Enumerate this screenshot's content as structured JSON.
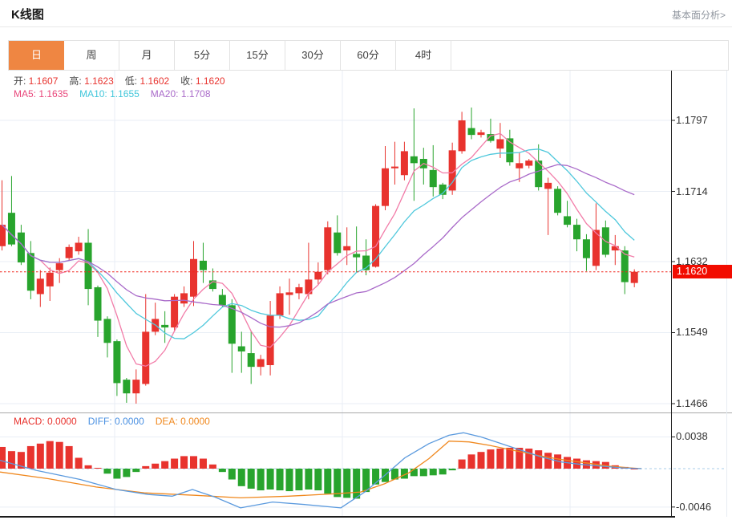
{
  "header": {
    "title": "K线图",
    "link": "基本面分析>"
  },
  "tabs": {
    "items": [
      "日",
      "周",
      "月",
      "5分",
      "15分",
      "30分",
      "60分",
      "4时"
    ],
    "active_index": 0,
    "active_color": "#ef8642"
  },
  "info": {
    "ohlc": [
      {
        "label": "开:",
        "value": "1.1607"
      },
      {
        "label": "高:",
        "value": "1.1623"
      },
      {
        "label": "低:",
        "value": "1.1602"
      },
      {
        "label": "收:",
        "value": "1.1620"
      }
    ],
    "value_color": "#e8332e",
    "ma": [
      {
        "label": "MA5:",
        "value": "1.1635",
        "color": "#e9477b"
      },
      {
        "label": "MA10:",
        "value": "1.1655",
        "color": "#3fc6da"
      },
      {
        "label": "MA20:",
        "value": "1.1708",
        "color": "#a96ac9"
      }
    ]
  },
  "macd_info": [
    {
      "label": "MACD:",
      "value": "0.0000",
      "color": "#e8332e"
    },
    {
      "label": "DIFF:",
      "value": "0.0000",
      "color": "#4a90e2"
    },
    {
      "label": "DEA:",
      "value": "0.0000",
      "color": "#f0881e"
    }
  ],
  "chart_data": {
    "type": "candlestick+macd",
    "grid": true,
    "main": {
      "y_ticks": [
        1.1797,
        1.1714,
        1.1632,
        1.1549,
        1.1466
      ],
      "current_price": 1.162,
      "current_tag_bg": "#f20c00",
      "dotted_line_color": "#f0251b",
      "up_color": "#e8332e",
      "down_color": "#28a42d",
      "ma": [
        {
          "name": "MA5",
          "period": 5,
          "color": "#f27ca8"
        },
        {
          "name": "MA10",
          "period": 10,
          "color": "#4fc8dc"
        },
        {
          "name": "MA20",
          "period": 20,
          "color": "#a96ac9"
        }
      ],
      "candles_ohlc": [
        [
          1.165,
          1.1727,
          1.1645,
          1.1675
        ],
        [
          1.1689,
          1.1732,
          1.165,
          1.1652
        ],
        [
          1.1666,
          1.1675,
          1.1628,
          1.1631
        ],
        [
          1.1642,
          1.1656,
          1.1588,
          1.1598
        ],
        [
          1.1594,
          1.1622,
          1.1579,
          1.1612
        ],
        [
          1.1603,
          1.1625,
          1.1586,
          1.1619
        ],
        [
          1.1622,
          1.1636,
          1.1607,
          1.163
        ],
        [
          1.1636,
          1.1652,
          1.1633,
          1.1649
        ],
        [
          1.1644,
          1.1661,
          1.164,
          1.1654
        ],
        [
          1.1654,
          1.167,
          1.1581,
          1.16
        ],
        [
          1.1602,
          1.1604,
          1.1544,
          1.1563
        ],
        [
          1.1565,
          1.1568,
          1.152,
          1.1537
        ],
        [
          1.1539,
          1.1541,
          1.1475,
          1.149
        ],
        [
          1.1494,
          1.1496,
          1.1467,
          1.1478
        ],
        [
          1.1478,
          1.1506,
          1.1466,
          1.1494
        ],
        [
          1.1489,
          1.1594,
          1.1487,
          1.155
        ],
        [
          1.155,
          1.1584,
          1.1546,
          1.1565
        ],
        [
          1.1558,
          1.1574,
          1.1537,
          1.1555
        ],
        [
          1.1555,
          1.1594,
          1.155,
          1.1591
        ],
        [
          1.1583,
          1.1603,
          1.1579,
          1.1595
        ],
        [
          1.1591,
          1.1656,
          1.158,
          1.1635
        ],
        [
          1.1633,
          1.1654,
          1.1607,
          1.1622
        ],
        [
          1.161,
          1.1624,
          1.1597,
          1.16
        ],
        [
          1.1593,
          1.16,
          1.1579,
          1.1581
        ],
        [
          1.1581,
          1.1588,
          1.1502,
          1.1536
        ],
        [
          1.1533,
          1.155,
          1.1502,
          1.1527
        ],
        [
          1.1525,
          1.1551,
          1.1489,
          1.1509
        ],
        [
          1.1509,
          1.1523,
          1.1499,
          1.1518
        ],
        [
          1.1511,
          1.1586,
          1.1499,
          1.1569
        ],
        [
          1.1569,
          1.1603,
          1.1565,
          1.1595
        ],
        [
          1.1593,
          1.1612,
          1.157,
          1.1596
        ],
        [
          1.1595,
          1.1606,
          1.1588,
          1.1602
        ],
        [
          1.1594,
          1.1654,
          1.1588,
          1.1611
        ],
        [
          1.1611,
          1.1631,
          1.1605,
          1.162
        ],
        [
          1.1622,
          1.1679,
          1.1617,
          1.1672
        ],
        [
          1.1666,
          1.1686,
          1.1639,
          1.1642
        ],
        [
          1.1645,
          1.1672,
          1.1628,
          1.165
        ],
        [
          1.1641,
          1.1673,
          1.1619,
          1.1637
        ],
        [
          1.1639,
          1.1658,
          1.1616,
          1.1622
        ],
        [
          1.1626,
          1.1699,
          1.1625,
          1.1697
        ],
        [
          1.1697,
          1.1767,
          1.1692,
          1.1741
        ],
        [
          1.1741,
          1.1772,
          1.1722,
          1.1743
        ],
        [
          1.1733,
          1.1772,
          1.1727,
          1.1761
        ],
        [
          1.1755,
          1.1811,
          1.1703,
          1.1747
        ],
        [
          1.1752,
          1.1765,
          1.1722,
          1.1741
        ],
        [
          1.1739,
          1.1768,
          1.1708,
          1.1719
        ],
        [
          1.1722,
          1.1724,
          1.1705,
          1.171
        ],
        [
          1.1715,
          1.1771,
          1.171,
          1.1762
        ],
        [
          1.1761,
          1.1807,
          1.1758,
          1.1797
        ],
        [
          1.1788,
          1.1812,
          1.1775,
          1.178
        ],
        [
          1.178,
          1.1786,
          1.1777,
          1.1783
        ],
        [
          1.1781,
          1.1799,
          1.1771,
          1.1773
        ],
        [
          1.1764,
          1.1794,
          1.1753,
          1.1775
        ],
        [
          1.1776,
          1.1786,
          1.1744,
          1.1748
        ],
        [
          1.1741,
          1.1759,
          1.1725,
          1.1747
        ],
        [
          1.1744,
          1.1752,
          1.1741,
          1.175
        ],
        [
          1.175,
          1.1769,
          1.1715,
          1.1719
        ],
        [
          1.1717,
          1.173,
          1.1663,
          1.1724
        ],
        [
          1.1717,
          1.172,
          1.1686,
          1.1689
        ],
        [
          1.1685,
          1.1703,
          1.1672,
          1.1675
        ],
        [
          1.1675,
          1.1682,
          1.1644,
          1.1658
        ],
        [
          1.1658,
          1.1664,
          1.1621,
          1.1636
        ],
        [
          1.1627,
          1.17,
          1.1622,
          1.1669
        ],
        [
          1.1672,
          1.168,
          1.1637,
          1.164
        ],
        [
          1.1645,
          1.1663,
          1.1628,
          1.165
        ],
        [
          1.1645,
          1.165,
          1.1594,
          1.1608
        ],
        [
          1.1607,
          1.1623,
          1.1602,
          1.162
        ]
      ]
    },
    "macd": {
      "y_ticks": [
        0.0038,
        -0.0046
      ],
      "zero_line_color": "#a8cdea",
      "dif_color": "#5b9ade",
      "dea_color": "#f0881e",
      "histogram": [
        0.0026,
        0.0021,
        0.002,
        0.0027,
        0.003,
        0.0033,
        0.0032,
        0.0027,
        0.0013,
        0.0004,
        0.0001,
        -0.0006,
        -0.0012,
        -0.001,
        -0.0004,
        0.0003,
        0.0006,
        0.0009,
        0.0012,
        0.0015,
        0.0015,
        0.0012,
        0.0005,
        -0.0004,
        -0.0013,
        -0.0021,
        -0.0024,
        -0.0026,
        -0.0025,
        -0.0026,
        -0.0027,
        -0.0026,
        -0.0025,
        -0.0026,
        -0.003,
        -0.0034,
        -0.0035,
        -0.0036,
        -0.0028,
        -0.0019,
        -0.0016,
        -0.0013,
        -0.0012,
        -0.0009,
        -0.0009,
        -0.0008,
        -0.0007,
        -0.0002,
        0.0011,
        0.0017,
        0.002,
        0.0023,
        0.0024,
        0.0025,
        0.0025,
        0.0024,
        0.0022,
        0.0019,
        0.0017,
        0.0014,
        0.0012,
        0.001,
        0.0009,
        0.0008,
        0.0004,
        0.0002,
        0.0
      ],
      "dif_points": [
        [
          0,
          0.001
        ],
        [
          45,
          -0.0002
        ],
        [
          100,
          -0.0013
        ],
        [
          145,
          -0.0025
        ],
        [
          185,
          -0.0031
        ],
        [
          215,
          -0.0033
        ],
        [
          240,
          -0.0025
        ],
        [
          268,
          -0.0034
        ],
        [
          300,
          -0.0047
        ],
        [
          340,
          -0.004
        ],
        [
          380,
          -0.0043
        ],
        [
          425,
          -0.0047
        ],
        [
          455,
          -0.0028
        ],
        [
          480,
          -0.0008
        ],
        [
          505,
          0.0013
        ],
        [
          535,
          0.003
        ],
        [
          560,
          0.004
        ],
        [
          578,
          0.0043
        ],
        [
          600,
          0.0038
        ],
        [
          625,
          0.003
        ],
        [
          650,
          0.0022
        ],
        [
          675,
          0.0014
        ],
        [
          700,
          0.0008
        ],
        [
          725,
          0.0005
        ],
        [
          750,
          0.0003
        ],
        [
          775,
          0.0001
        ],
        [
          800,
          0.0
        ]
      ],
      "dea_points": [
        [
          0,
          -0.0004
        ],
        [
          60,
          -0.0012
        ],
        [
          120,
          -0.0022
        ],
        [
          180,
          -0.0029
        ],
        [
          245,
          -0.0032
        ],
        [
          300,
          -0.0035
        ],
        [
          360,
          -0.0033
        ],
        [
          420,
          -0.003
        ],
        [
          450,
          -0.0028
        ],
        [
          480,
          -0.0018
        ],
        [
          510,
          -0.0005
        ],
        [
          535,
          0.0012
        ],
        [
          560,
          0.0033
        ],
        [
          585,
          0.0032
        ],
        [
          610,
          0.0028
        ],
        [
          640,
          0.0022
        ],
        [
          670,
          0.0016
        ],
        [
          700,
          0.0011
        ],
        [
          730,
          0.0007
        ],
        [
          760,
          0.0003
        ],
        [
          785,
          0.0001
        ],
        [
          800,
          0.0
        ]
      ]
    }
  }
}
